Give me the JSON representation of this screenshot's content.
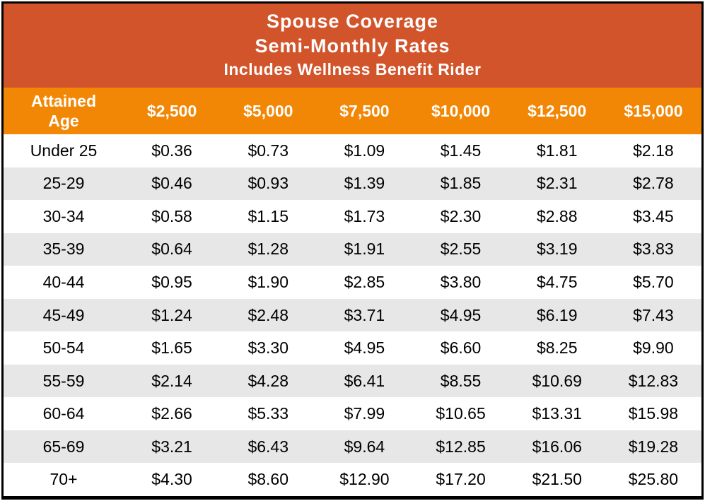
{
  "title": {
    "line1": "Spouse Coverage",
    "line2": "Semi-Monthly Rates",
    "line3": "Includes Wellness Benefit Rider"
  },
  "table": {
    "columns": [
      "Attained\nAge",
      "$2,500",
      "$5,000",
      "$7,500",
      "$10,000",
      "$12,500",
      "$15,000"
    ],
    "rows": [
      {
        "age": "Under 25",
        "rates": [
          "$0.36",
          "$0.73",
          "$1.09",
          "$1.45",
          "$1.81",
          "$2.18"
        ]
      },
      {
        "age": "25-29",
        "rates": [
          "$0.46",
          "$0.93",
          "$1.39",
          "$1.85",
          "$2.31",
          "$2.78"
        ]
      },
      {
        "age": "30-34",
        "rates": [
          "$0.58",
          "$1.15",
          "$1.73",
          "$2.30",
          "$2.88",
          "$3.45"
        ]
      },
      {
        "age": "35-39",
        "rates": [
          "$0.64",
          "$1.28",
          "$1.91",
          "$2.55",
          "$3.19",
          "$3.83"
        ]
      },
      {
        "age": "40-44",
        "rates": [
          "$0.95",
          "$1.90",
          "$2.85",
          "$3.80",
          "$4.75",
          "$5.70"
        ]
      },
      {
        "age": "45-49",
        "rates": [
          "$1.24",
          "$2.48",
          "$3.71",
          "$4.95",
          "$6.19",
          "$7.43"
        ]
      },
      {
        "age": "50-54",
        "rates": [
          "$1.65",
          "$3.30",
          "$4.95",
          "$6.60",
          "$8.25",
          "$9.90"
        ]
      },
      {
        "age": "55-59",
        "rates": [
          "$2.14",
          "$4.28",
          "$6.41",
          "$8.55",
          "$10.69",
          "$12.83"
        ]
      },
      {
        "age": "60-64",
        "rates": [
          "$2.66",
          "$5.33",
          "$7.99",
          "$10.65",
          "$13.31",
          "$15.98"
        ]
      },
      {
        "age": "65-69",
        "rates": [
          "$3.21",
          "$6.43",
          "$9.64",
          "$12.85",
          "$16.06",
          "$19.28"
        ]
      },
      {
        "age": "70+",
        "rates": [
          "$4.30",
          "$8.60",
          "$12.90",
          "$17.20",
          "$21.50",
          "$25.80"
        ]
      }
    ]
  },
  "colors": {
    "title_bg": "#D2542B",
    "header_bg": "#F28705",
    "row_alt_bg": "#E7E7E7",
    "border": "#000000",
    "header_text": "#ffffff",
    "data_text": "#000000"
  }
}
